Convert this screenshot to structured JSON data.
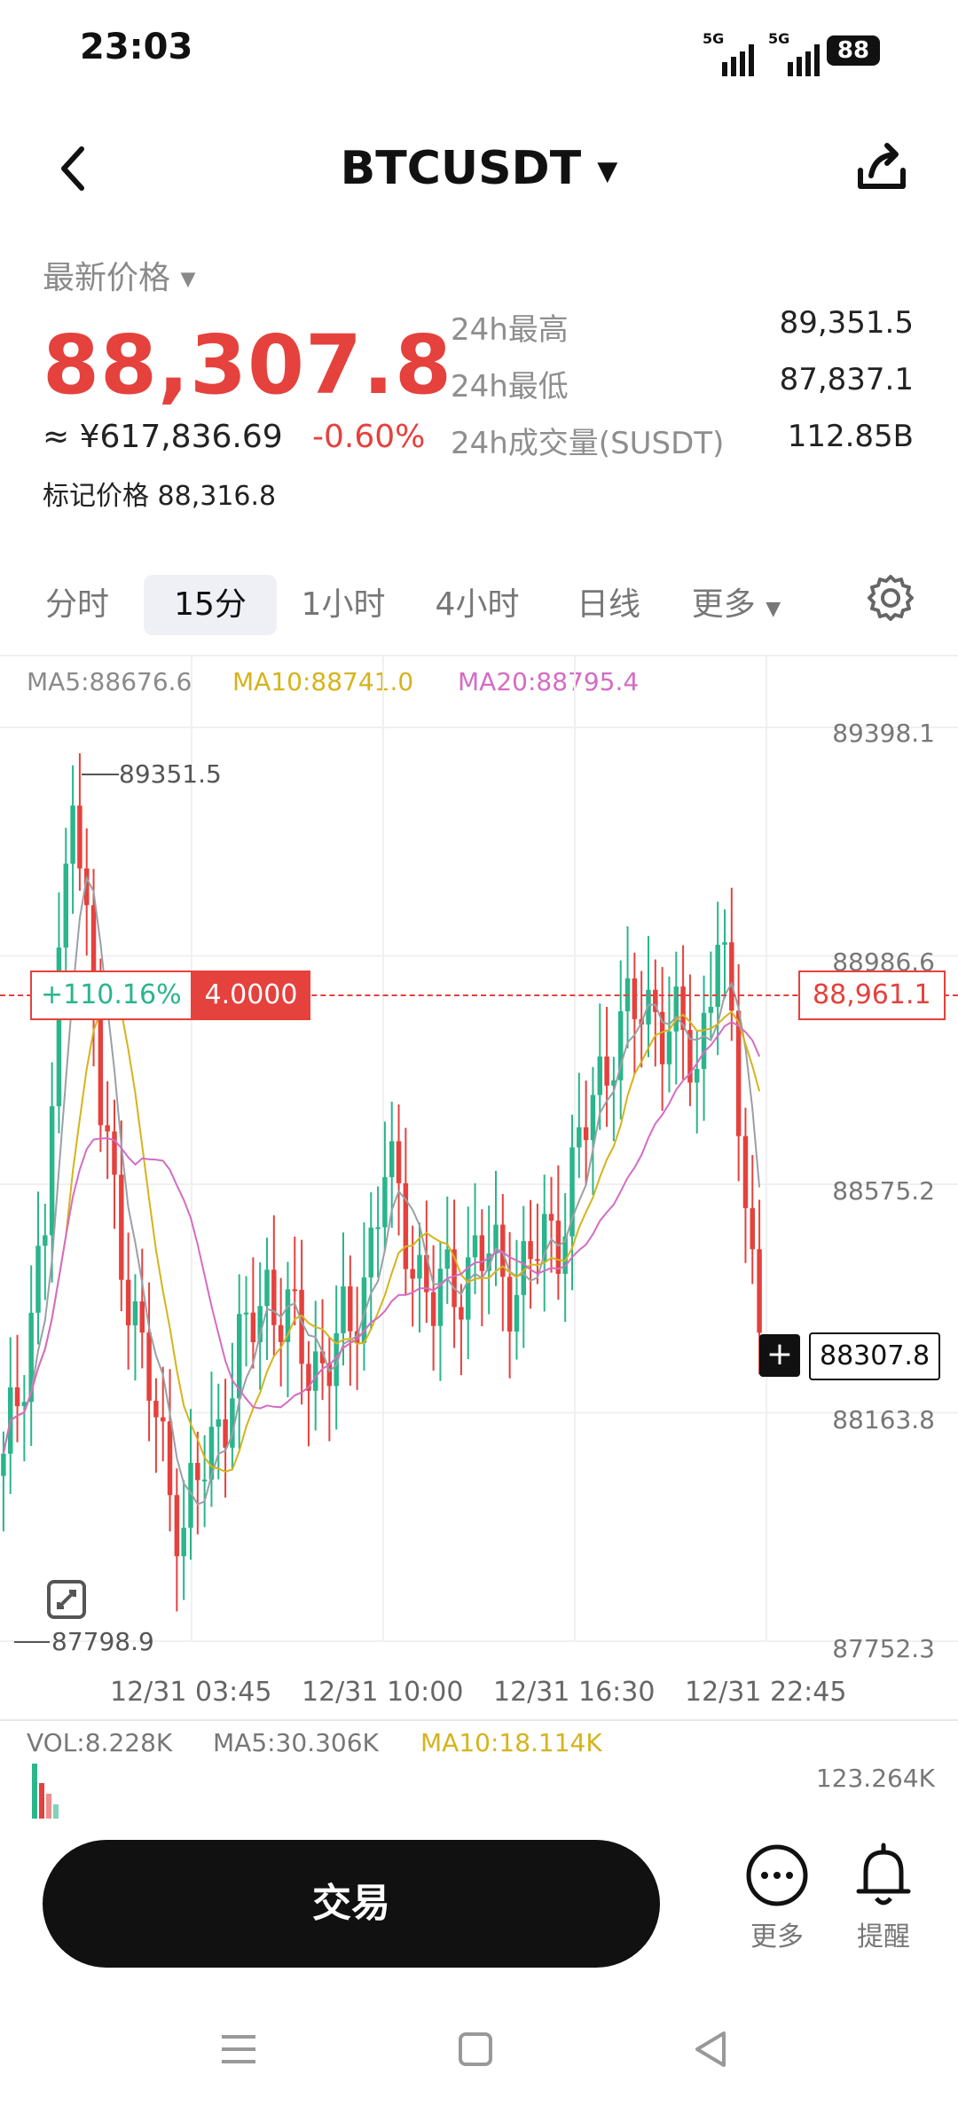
{
  "status_bar": {
    "time": "23:03",
    "signal_1": "5G",
    "signal_2": "5G",
    "battery": "88"
  },
  "header": {
    "symbol": "BTCUSDT"
  },
  "price": {
    "label": "最新价格",
    "last": "88,307.8",
    "cny": "≈ ¥617,836.69",
    "change": "-0.60%",
    "mark_label": "标记价格",
    "mark_value": "88,316.8"
  },
  "stats": [
    {
      "label": "24h最高",
      "value": "89,351.5"
    },
    {
      "label": "24h最低",
      "value": "87,837.1"
    },
    {
      "label": "24h成交量(SUSDT)",
      "value": "112.85B"
    }
  ],
  "tabs": [
    "分时",
    "15分",
    "1小时",
    "4小时",
    "日线",
    "更多"
  ],
  "active_tab": "15分",
  "chart": {
    "ma5": "MA5:88676.6",
    "ma10": "MA10:88741.0",
    "ma20": "MA20:88795.4",
    "y_ticks": [
      "89398.1",
      "88986.6",
      "88575.2",
      "88163.8",
      "87752.3"
    ],
    "high_marker": "89351.5",
    "low_marker": "87798.9",
    "position_pnl": "+110.16%",
    "position_size": "4.0000",
    "position_price": "88,961.1",
    "current_price": "88307.8",
    "x_ticks": [
      "12/31 03:45",
      "12/31 10:00",
      "12/31 16:30",
      "12/31 22:45"
    ],
    "colors": {
      "up": "#2ab58c",
      "down": "#e5413d",
      "ma5": "#9aa0a6",
      "ma10": "#d6b31c",
      "ma20": "#d46cc4"
    }
  },
  "volume": {
    "vol": "VOL:8.228K",
    "ma5": "MA5:30.306K",
    "ma10": "MA10:18.114K",
    "max": "123.264K"
  },
  "bottom": {
    "trade": "交易",
    "more": "更多",
    "alert": "提醒"
  },
  "chart_data": {
    "type": "candlestick",
    "x": [
      "12/31 03:45",
      "12/31 10:00",
      "12/31 16:30",
      "12/31 22:45"
    ],
    "ylim": [
      87752.3,
      89398.1
    ],
    "high": 89351.5,
    "low": 87798.9,
    "last": 88307.8
  }
}
